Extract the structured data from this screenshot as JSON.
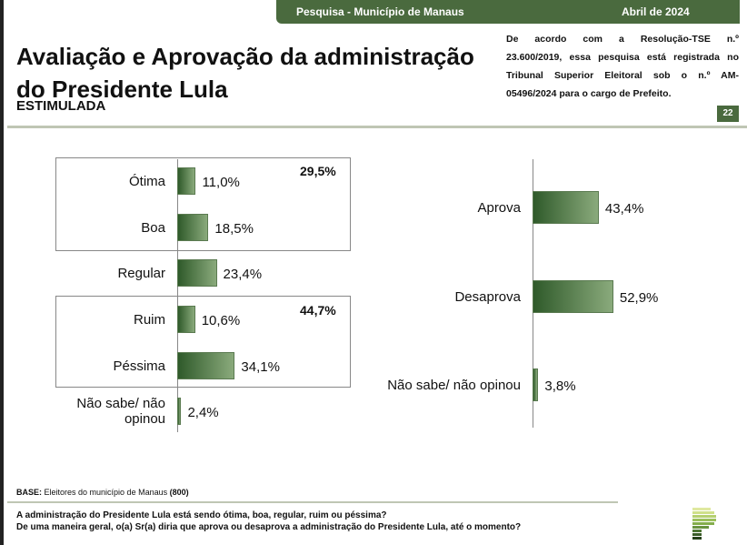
{
  "header": {
    "survey": "Pesquisa - Município de Manaus",
    "date": "Abril de 2024"
  },
  "title": "Avaliação e Aprovação da administração do Presidente Lula",
  "subtitle": "ESTIMULADA",
  "legal": [
    "De acordo com a Resolução-TSE n.º",
    "23.600/2019, essa pesquisa está registrada no",
    "Tribunal Superior Eleitoral sob o n.º AM-",
    "05496/2024 para o cargo de Prefeito."
  ],
  "page_number": "22",
  "chart_data": [
    {
      "type": "bar",
      "orientation": "horizontal",
      "title": "Avaliação",
      "categories": [
        "Ótima",
        "Boa",
        "Regular",
        "Ruim",
        "Péssima",
        "Não sabe/ não opinou"
      ],
      "values": [
        11.0,
        18.5,
        23.4,
        10.6,
        34.1,
        2.4
      ],
      "labels": [
        "11,0%",
        "18,5%",
        "23,4%",
        "10,6%",
        "34,1%",
        "2,4%"
      ],
      "groups": [
        {
          "label": "29,5%",
          "members": [
            "Ótima",
            "Boa"
          ]
        },
        {
          "label": "44,7%",
          "members": [
            "Ruim",
            "Péssima"
          ]
        }
      ]
    },
    {
      "type": "bar",
      "orientation": "horizontal",
      "title": "Aprovação",
      "categories": [
        "Aprova",
        "Desaprova",
        "Não sabe/ não opinou"
      ],
      "values": [
        43.4,
        52.9,
        3.8
      ],
      "labels": [
        "43,4%",
        "52,9%",
        "3,8%"
      ]
    }
  ],
  "footer": {
    "base_label": "BASE:",
    "base_text": " Eleitores do município de Manaus ",
    "base_n": "(800)",
    "questions": [
      "A administração do Presidente Lula está sendo ótima, boa, regular, ruim ou péssima?",
      "De uma maneira geral, o(a) Sr(a) diria que aprova ou desaprova a administração do Presidente Lula, até o momento?"
    ]
  },
  "colors": {
    "brand": "#4a6a3e"
  }
}
